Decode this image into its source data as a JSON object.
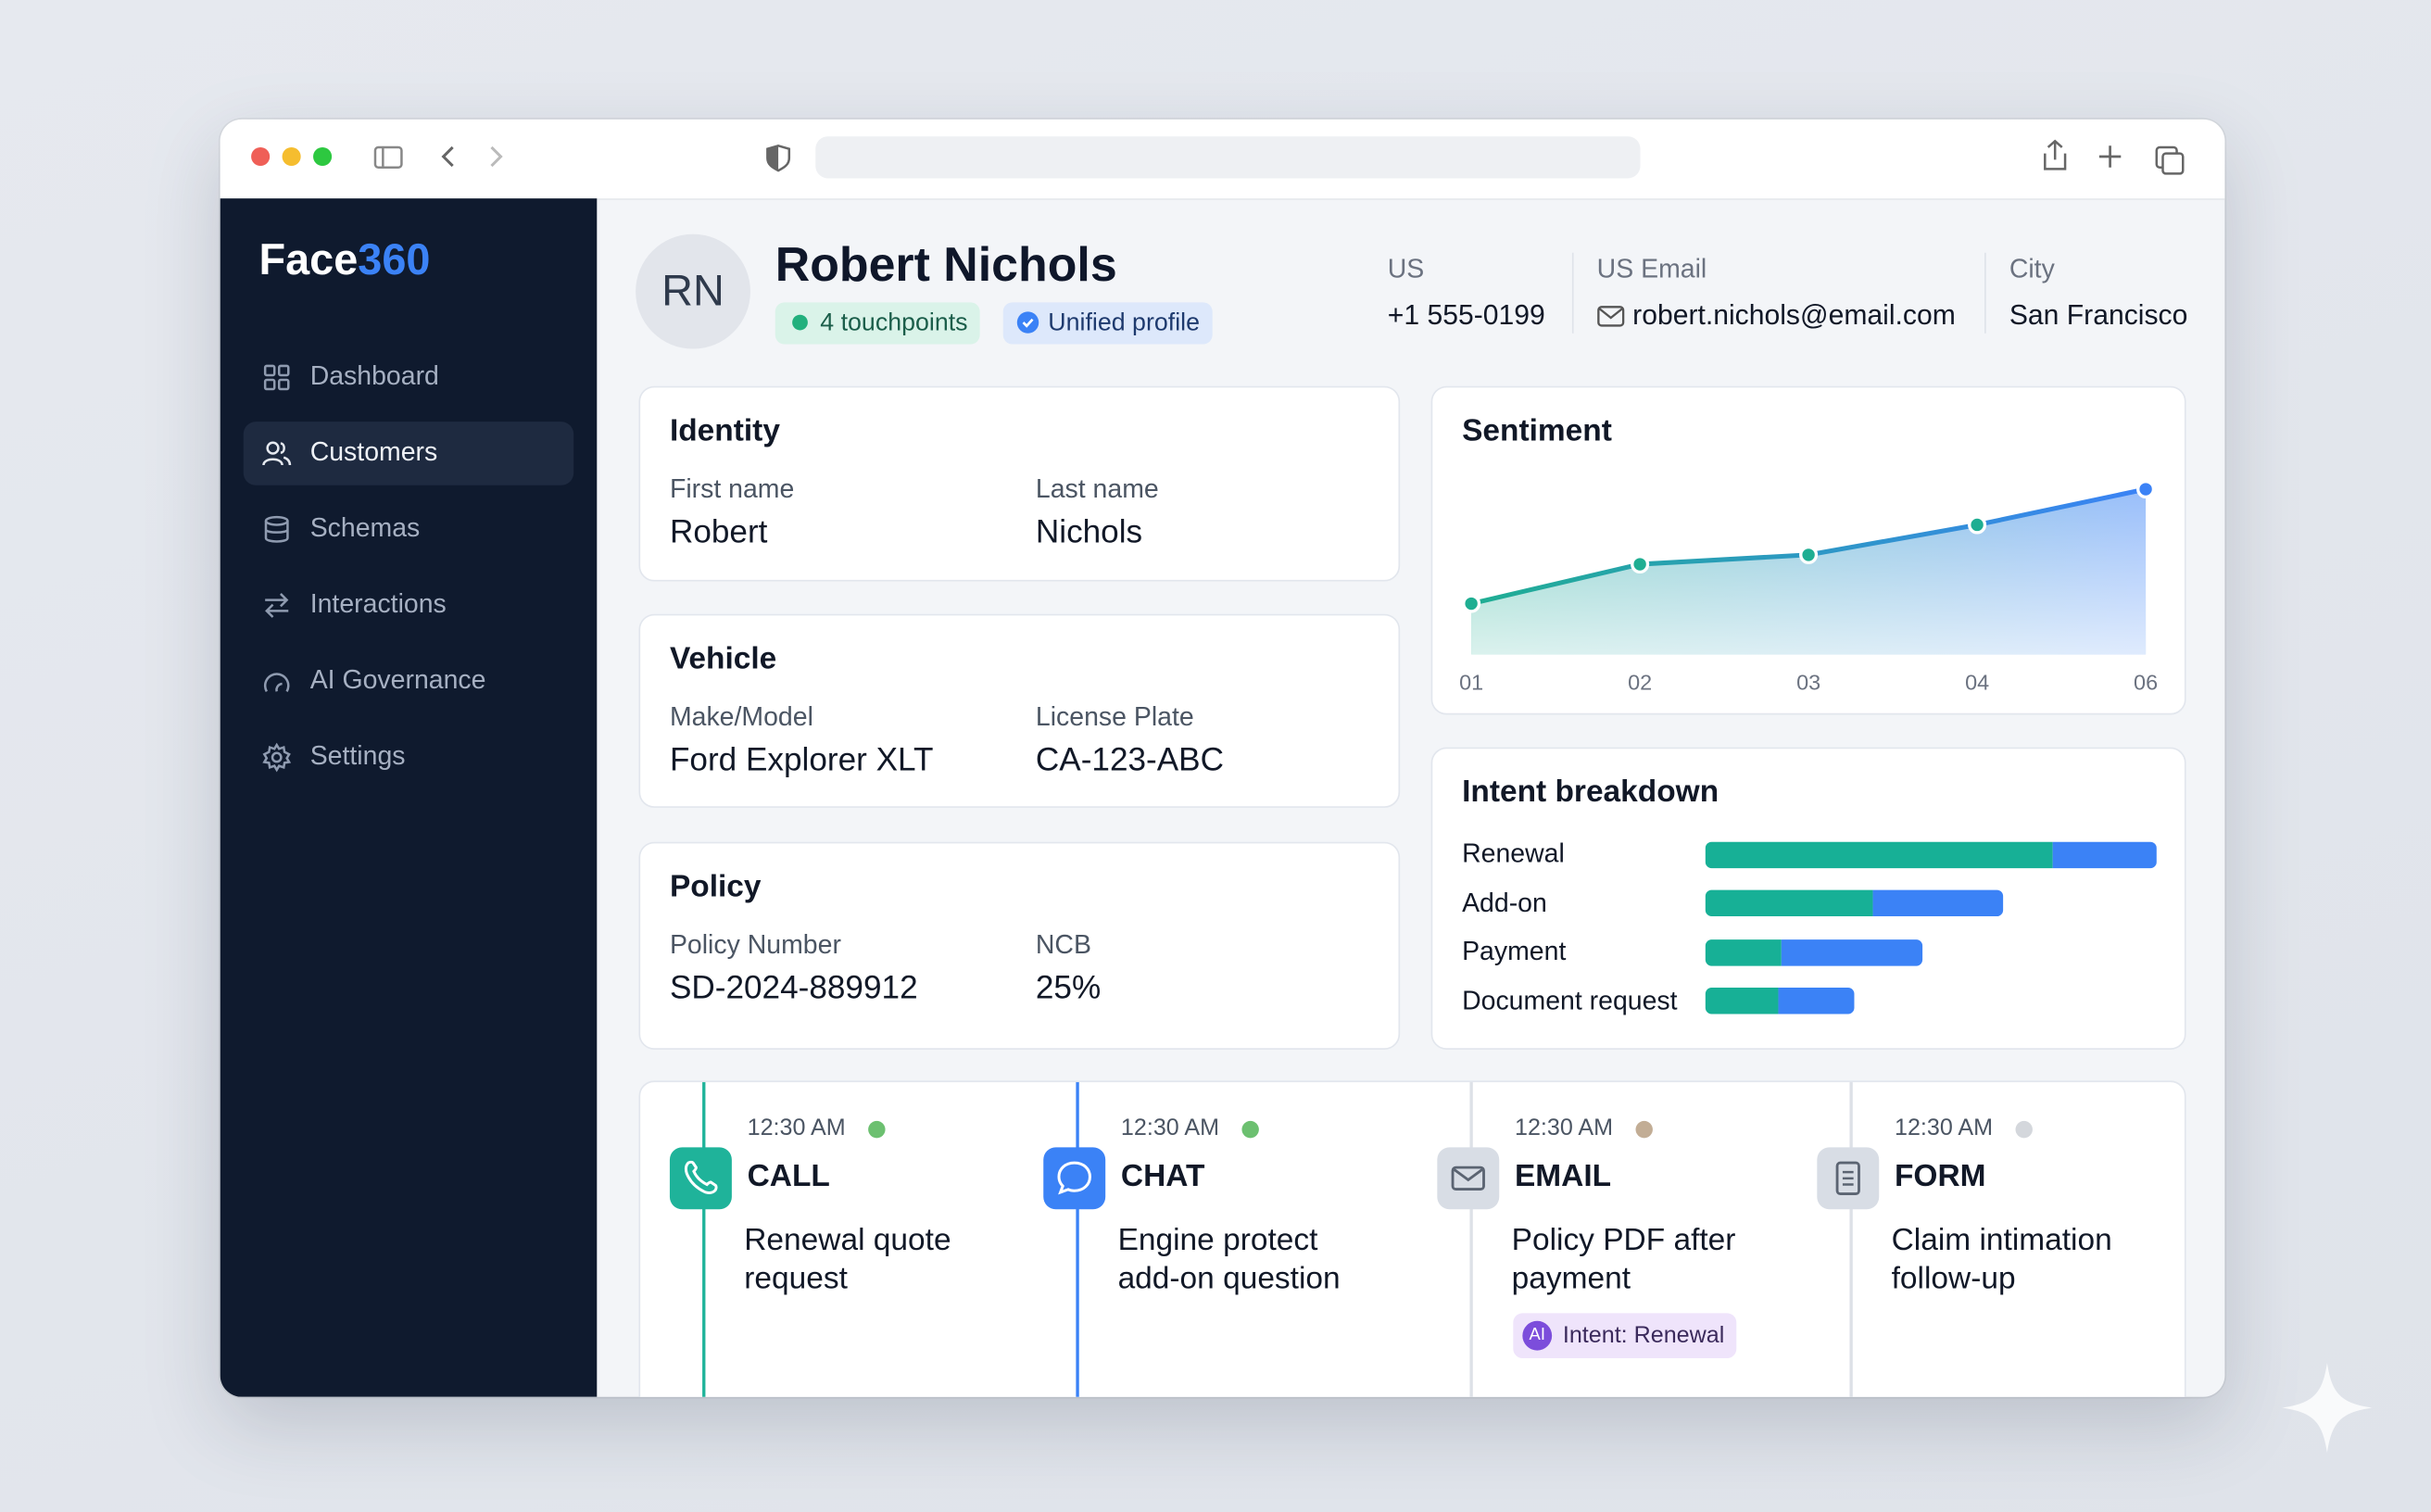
{
  "sidebar": {
    "brand": "Face",
    "brand_accent": "360",
    "nav": [
      "Dashboard",
      "Customers",
      "Schemas",
      "Interactions",
      "AI Governance",
      "Settings"
    ],
    "active": 1
  },
  "profile": {
    "initials": "RN",
    "name": "Robert Nichols",
    "badges": [
      "4 touchpoints",
      "Unified profile"
    ],
    "contacts": [
      {
        "label": "US",
        "value": "+1 555-0199"
      },
      {
        "label": "US Email",
        "value": "robert.nichols@email.com"
      },
      {
        "label": "City",
        "value": "San Francisco"
      }
    ]
  },
  "cards": [
    {
      "title": "Identity",
      "fields": [
        {
          "label": "First name",
          "value": "Robert"
        },
        {
          "label": "Last name",
          "value": "Nichols"
        }
      ]
    },
    {
      "title": "Vehicle",
      "fields": [
        {
          "label": "Make/Model",
          "value": "Ford Explorer XLT"
        },
        {
          "label": "License Plate",
          "value": "CA-123-ABC"
        }
      ]
    },
    {
      "title": "Policy",
      "fields": [
        {
          "label": "Policy Number",
          "value": "SD-2024-889912"
        },
        {
          "label": "NCB",
          "value": "25%"
        }
      ]
    }
  ],
  "sentiment": {
    "type": "area",
    "title": "Sentiment",
    "categories": [
      "01",
      "02",
      "03",
      "04",
      "06"
    ],
    "values": [
      27,
      48,
      53,
      69,
      88
    ],
    "ylim": [
      0,
      100
    ],
    "colors": [
      "#1fae92",
      "#3b82f6"
    ]
  },
  "intent": {
    "type": "bar",
    "title": "Intent breakdown",
    "categories": [
      "Renewal",
      "Add-on",
      "Payment",
      "Document request"
    ],
    "series": [
      {
        "color": "#17b096",
        "values": [
          77,
          37,
          17,
          16
        ]
      },
      {
        "color": "#3b82f6",
        "values": [
          23,
          29,
          31,
          17
        ]
      }
    ],
    "xlim": [
      0,
      100
    ]
  },
  "timeline": [
    {
      "time": "12:30 AM",
      "channel": "CALL",
      "text": "Renewal quote request",
      "accent": "#1fb39a",
      "status": "#6cc070"
    },
    {
      "time": "12:30 AM",
      "channel": "CHAT",
      "text": "Engine protect add-on question",
      "accent": "#3b82f6",
      "status": "#6cc070"
    },
    {
      "time": "12:30 AM",
      "channel": "EMAIL",
      "text": "Policy PDF after payment",
      "accent": "#d8dde5",
      "status": "#c2ad95",
      "tag_icon": "AI",
      "tag": "Intent: Renewal"
    },
    {
      "time": "12:30 AM",
      "channel": "FORM",
      "text": "Claim intimation follow-up",
      "accent": "#d8dde5",
      "status": "#d4d7dc"
    }
  ]
}
